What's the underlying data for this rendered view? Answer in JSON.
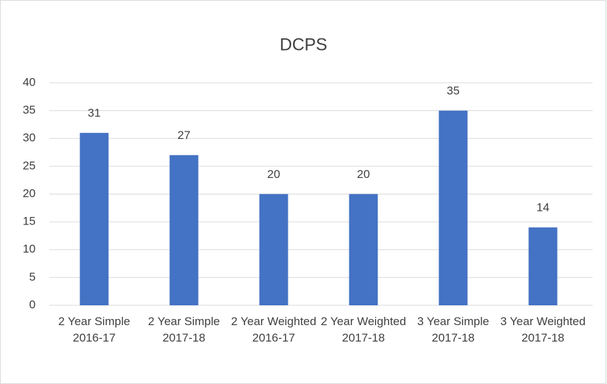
{
  "chart_data": {
    "type": "bar",
    "title": "DCPS",
    "categories": [
      "2 Year Simple 2016-17",
      "2 Year Simple 2017-18",
      "2 Year Weighted 2016-17",
      "2 Year Weighted 2017-18",
      "3 Year Simple 2017-18",
      "3 Year Weighted 2017-18"
    ],
    "values": [
      31,
      27,
      20,
      20,
      35,
      14
    ],
    "color": "#4472c4",
    "ylim": [
      0,
      40
    ],
    "yticks": [
      0,
      5,
      10,
      15,
      20,
      25,
      30,
      35,
      40
    ],
    "grid": true,
    "data_labels": true
  }
}
